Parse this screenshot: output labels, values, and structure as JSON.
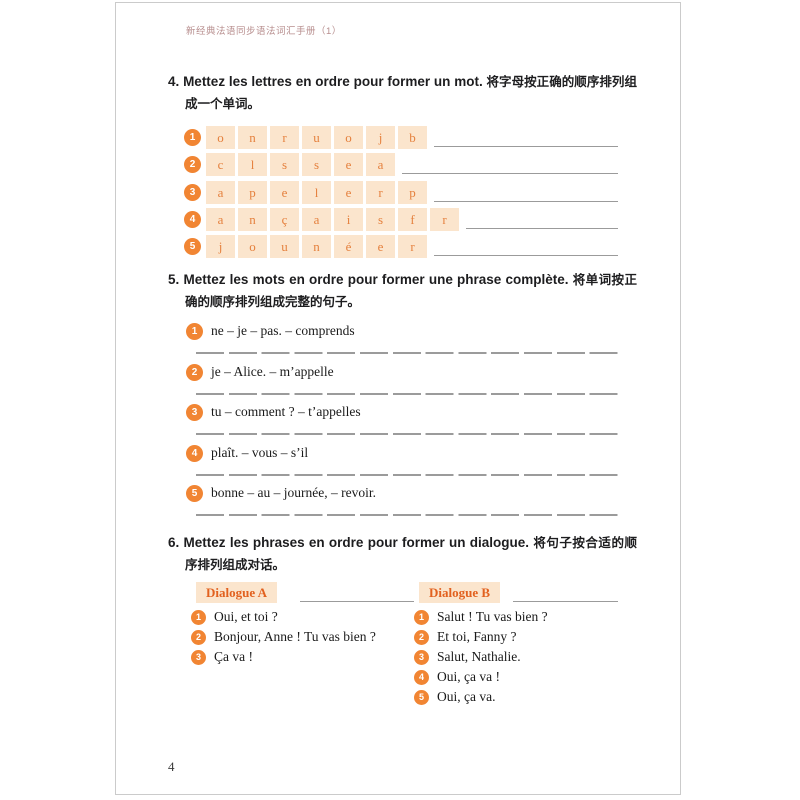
{
  "page": {
    "header": "新经典法语同步语法词汇手册（1）",
    "page_number": "4"
  },
  "colors": {
    "accent_orange": "#f18533",
    "tile_background": "#fbe5cd",
    "tile_letter": "#e5813e",
    "dialogue_label_text": "#e2611f",
    "header_rose": "#b78e8e",
    "line_gray": "#9b9b9b",
    "text_black": "#1d1d1f"
  },
  "exercise4": {
    "number": "4.",
    "title_fr": "Mettez les lettres en ordre pour former un mot.",
    "title_zh": "将字母按正确的顺序排列组成一个单词。",
    "rows": [
      {
        "num": "1",
        "letters": [
          "o",
          "n",
          "r",
          "u",
          "o",
          "j",
          "b"
        ]
      },
      {
        "num": "2",
        "letters": [
          "c",
          "l",
          "s",
          "s",
          "e",
          "a"
        ]
      },
      {
        "num": "3",
        "letters": [
          "a",
          "p",
          "e",
          "l",
          "e",
          "r",
          "p"
        ]
      },
      {
        "num": "4",
        "letters": [
          "a",
          "n",
          "ç",
          "a",
          "i",
          "s",
          "f",
          "r"
        ]
      },
      {
        "num": "5",
        "letters": [
          "j",
          "o",
          "u",
          "n",
          "é",
          "e",
          "r"
        ]
      }
    ]
  },
  "exercise5": {
    "number": "5.",
    "title_fr": "Mettez les mots en ordre pour former une phrase complète.",
    "title_zh": "将单词按正确的顺序排列组成完整的句子。",
    "items": [
      {
        "num": "1",
        "text": "ne – je – pas. – comprends"
      },
      {
        "num": "2",
        "text": "je – Alice. – m’appelle"
      },
      {
        "num": "3",
        "text": "tu – comment ? – t’appelles"
      },
      {
        "num": "4",
        "text": "plaît. – vous – s’il"
      },
      {
        "num": "5",
        "text": "bonne – au – journée, – revoir."
      }
    ]
  },
  "exercise6": {
    "number": "6.",
    "title_fr": "Mettez les phrases en ordre pour former un dialogue.",
    "title_zh": "将句子按合适的顺序排列组成对话。",
    "dialogue_a": {
      "label": "Dialogue A",
      "items": [
        {
          "num": "1",
          "text": "Oui, et toi ?"
        },
        {
          "num": "2",
          "text": "Bonjour, Anne ! Tu vas bien ?"
        },
        {
          "num": "3",
          "text": "Ça va !"
        }
      ]
    },
    "dialogue_b": {
      "label": "Dialogue B",
      "items": [
        {
          "num": "1",
          "text": "Salut ! Tu vas bien ?"
        },
        {
          "num": "2",
          "text": "Et toi, Fanny ?"
        },
        {
          "num": "3",
          "text": "Salut, Nathalie."
        },
        {
          "num": "4",
          "text": "Oui, ça va !"
        },
        {
          "num": "5",
          "text": "Oui, ça va."
        }
      ]
    }
  }
}
